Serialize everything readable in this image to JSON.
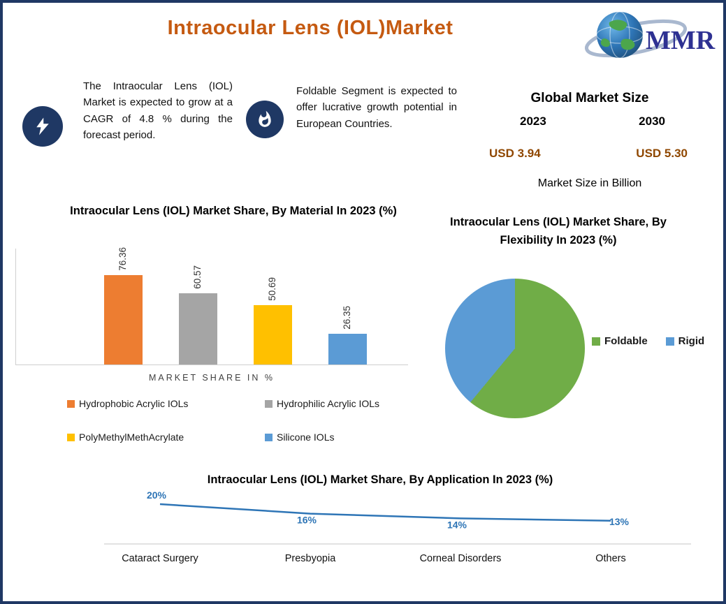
{
  "page": {
    "title": "Intraocular Lens (IOL)Market",
    "logo_text": "MMR"
  },
  "highlights": [
    {
      "icon": "lightning-icon",
      "text": "The Intraocular Lens (IOL) Market is expected to grow at a CAGR of 4.8 % during the forecast period."
    },
    {
      "icon": "flame-icon",
      "text": "Foldable Segment is expected to offer lucrative growth potential in European Countries."
    }
  ],
  "market_size": {
    "title": "Global Market Size",
    "years": [
      "2023",
      "2030"
    ],
    "values": [
      "USD 3.94",
      "USD 5.30"
    ],
    "caption": "Market Size in Billion"
  },
  "colors": {
    "border_navy": "#1F3864",
    "title_orange": "#C55A11",
    "usd_brown": "#8F4700",
    "axis_gray": "#CFCFCF"
  },
  "chart_data": [
    {
      "type": "bar",
      "title": "Intraocular Lens (IOL) Market Share, By Material In 2023 (%)",
      "xlabel": "MARKET SHARE IN %",
      "categories": [
        "Hydrophobic Acrylic IOLs",
        "Hydrophilic Acrylic IOLs",
        "PolyMethylMethAcrylate",
        "Silicone IOLs"
      ],
      "values": [
        76.36,
        60.57,
        50.69,
        26.35
      ],
      "colors": [
        "#ED7D31",
        "#A5A5A5",
        "#FFC000",
        "#5B9BD5"
      ],
      "ylim": [
        0,
        100
      ],
      "legend_position": "bottom",
      "grid": false
    },
    {
      "type": "pie",
      "title": "Intraocular Lens (IOL) Market Share, By Flexibility In 2023 (%)",
      "labels": [
        "Foldable",
        "Rigid"
      ],
      "values": [
        61,
        39
      ],
      "colors": [
        "#70AD47",
        "#5B9BD5"
      ],
      "legend_position": "right"
    },
    {
      "type": "line",
      "title": "Intraocular Lens (IOL) Market Share, By Application In 2023 (%)",
      "categories": [
        "Cataract Surgery",
        "Presbyopia",
        "Corneal Disorders",
        "Others"
      ],
      "values": [
        20,
        16,
        14,
        13
      ],
      "point_labels": [
        "20%",
        "16%",
        "14%",
        "13%"
      ],
      "line_color": "#2E75B6",
      "grid": true
    }
  ]
}
